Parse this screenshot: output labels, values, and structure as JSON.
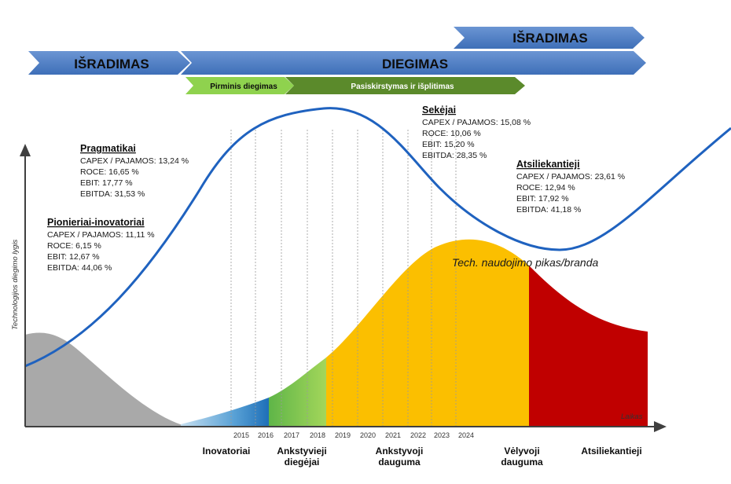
{
  "bands": {
    "top_right": "IŠRADIMAS",
    "left": "IŠRADIMAS",
    "main": "DIEGIMAS",
    "sub_first": "Pirminis diegimas",
    "sub_second": "Pasiskirstymas ir išplitimas"
  },
  "groups": [
    {
      "id": "pionieriai",
      "title": "Pionieriai-inovatoriai",
      "metrics": [
        "CAPEX / PAJAMOS: 11,11 %",
        "ROCE: 6,15 %",
        "EBIT: 12,67 %",
        "EBITDA: 44,06 %"
      ]
    },
    {
      "id": "pragmatikai",
      "title": "Pragmatikai",
      "metrics": [
        "CAPEX / PAJAMOS: 13,24 %",
        "ROCE: 16,65 %",
        "EBIT: 17,77 %",
        "EBITDA: 31,53 %"
      ]
    },
    {
      "id": "sekejai",
      "title": "Sekėjai",
      "metrics": [
        "CAPEX / PAJAMOS: 15,08 %",
        "ROCE: 10,06 %",
        "EBIT: 15,20 %",
        "EBITDA: 28,35 %"
      ]
    },
    {
      "id": "atsiliekantieji",
      "title": "Atsiliekantieji",
      "metrics": [
        "CAPEX / PAJAMOS: 23,61 %",
        "ROCE: 12,94 %",
        "EBIT: 17,92 %",
        "EBITDA: 41,18 %"
      ]
    }
  ],
  "years": [
    "2015",
    "2016",
    "2017",
    "2018",
    "2019",
    "2020",
    "2021",
    "2022",
    "2023",
    "2024"
  ],
  "segments": [
    {
      "id": "inovatoriai",
      "lines": [
        "Inovatoriai"
      ]
    },
    {
      "id": "ankstyvieji",
      "lines": [
        "Ankstyvieji",
        "diegėjai"
      ]
    },
    {
      "id": "ankstyvoji",
      "lines": [
        "Ankstyvoji",
        "dauguma"
      ]
    },
    {
      "id": "velyvoji",
      "lines": [
        "Vėlyvoji",
        "dauguma"
      ]
    },
    {
      "id": "atsiliekantieji",
      "lines": [
        "Atsiliekantieji"
      ]
    }
  ],
  "axes": {
    "x_label": "Laikas",
    "y_label": "Technologijos diegimo lygis"
  },
  "peak_label": "Tech. naudojimo pikas/branda",
  "colors": {
    "band_blue": "#4a7cc4",
    "band_light_green": "#8fd24e",
    "band_dark_green": "#5b8a2b",
    "curve_blue": "#1f62bf",
    "gray": "#a9a9a9",
    "blue_seg": "#2e82c6",
    "green_seg": "#8fcc4c",
    "yellow_seg": "#fbbf00",
    "red_seg": "#c00000",
    "axis": "#404040"
  }
}
